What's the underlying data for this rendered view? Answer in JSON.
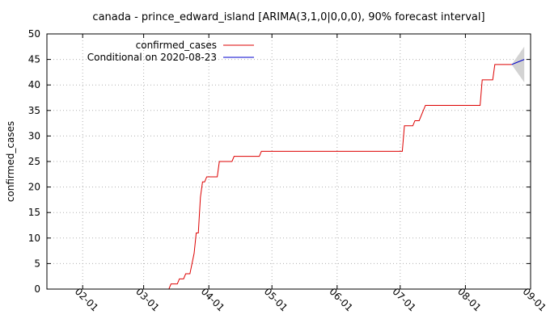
{
  "chart_data": {
    "type": "line",
    "title": "canada - prince_edward_island [ARIMA(3,1,0|0,0,0), 90% forecast interval]",
    "ylabel": "confirmed_cases",
    "xlabel": "",
    "x_range": [
      "2020-01-15",
      "2020-09-01"
    ],
    "ylim": [
      0,
      50
    ],
    "y_ticks": [
      0,
      5,
      10,
      15,
      20,
      25,
      30,
      35,
      40,
      45,
      50
    ],
    "x_ticks": [
      {
        "date": "2020-02-01",
        "label": "02-01"
      },
      {
        "date": "2020-03-01",
        "label": "03-01"
      },
      {
        "date": "2020-04-01",
        "label": "04-01"
      },
      {
        "date": "2020-05-01",
        "label": "05-01"
      },
      {
        "date": "2020-06-01",
        "label": "06-01"
      },
      {
        "date": "2020-07-01",
        "label": "07-01"
      },
      {
        "date": "2020-08-01",
        "label": "08-01"
      },
      {
        "date": "2020-09-01",
        "label": "09-01"
      }
    ],
    "grid": true,
    "legend_position": "top-left",
    "series": [
      {
        "name": "confirmed_cases",
        "color": "#dd0000",
        "points": [
          [
            "2020-03-13",
            0
          ],
          [
            "2020-03-14",
            1
          ],
          [
            "2020-03-17",
            1
          ],
          [
            "2020-03-18",
            2
          ],
          [
            "2020-03-20",
            2
          ],
          [
            "2020-03-21",
            3
          ],
          [
            "2020-03-23",
            3
          ],
          [
            "2020-03-24",
            5
          ],
          [
            "2020-03-25",
            7
          ],
          [
            "2020-03-26",
            11
          ],
          [
            "2020-03-27",
            11
          ],
          [
            "2020-03-28",
            18
          ],
          [
            "2020-03-29",
            21
          ],
          [
            "2020-03-30",
            21
          ],
          [
            "2020-03-31",
            22
          ],
          [
            "2020-04-05",
            22
          ],
          [
            "2020-04-06",
            25
          ],
          [
            "2020-04-12",
            25
          ],
          [
            "2020-04-13",
            26
          ],
          [
            "2020-04-25",
            26
          ],
          [
            "2020-04-26",
            27
          ],
          [
            "2020-07-02",
            27
          ],
          [
            "2020-07-03",
            32
          ],
          [
            "2020-07-07",
            32
          ],
          [
            "2020-07-08",
            33
          ],
          [
            "2020-07-10",
            33
          ],
          [
            "2020-07-13",
            36
          ],
          [
            "2020-08-08",
            36
          ],
          [
            "2020-08-09",
            41
          ],
          [
            "2020-08-14",
            41
          ],
          [
            "2020-08-15",
            44
          ],
          [
            "2020-08-23",
            44
          ]
        ]
      },
      {
        "name": "Conditional on 2020-08-23",
        "color": "#0000cc",
        "points": [
          [
            "2020-08-23",
            44
          ],
          [
            "2020-08-29",
            45
          ]
        ]
      }
    ],
    "forecast_interval": {
      "color": "#d3d3d3",
      "upper": [
        [
          "2020-08-23",
          44
        ],
        [
          "2020-08-29",
          47.5
        ]
      ],
      "lower": [
        [
          "2020-08-23",
          44
        ],
        [
          "2020-08-29",
          40.5
        ]
      ]
    }
  }
}
